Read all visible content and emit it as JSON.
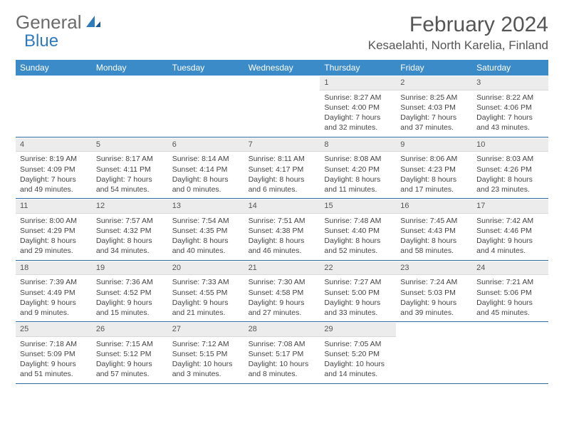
{
  "logo": {
    "text1": "General",
    "text2": "Blue"
  },
  "title": "February 2024",
  "location": "Kesaelahti, North Karelia, Finland",
  "colors": {
    "header_bg": "#3b8bc9",
    "header_text": "#ffffff",
    "daynum_bg": "#ececec",
    "week_border": "#2f6aa0",
    "logo_gray": "#6b6b6b",
    "logo_blue": "#2f7abf",
    "body_text": "#444444"
  },
  "weekdays": [
    "Sunday",
    "Monday",
    "Tuesday",
    "Wednesday",
    "Thursday",
    "Friday",
    "Saturday"
  ],
  "weeks": [
    [
      null,
      null,
      null,
      null,
      {
        "n": "1",
        "sr": "8:27 AM",
        "ss": "4:00 PM",
        "dl": "7 hours and 32 minutes."
      },
      {
        "n": "2",
        "sr": "8:25 AM",
        "ss": "4:03 PM",
        "dl": "7 hours and 37 minutes."
      },
      {
        "n": "3",
        "sr": "8:22 AM",
        "ss": "4:06 PM",
        "dl": "7 hours and 43 minutes."
      }
    ],
    [
      {
        "n": "4",
        "sr": "8:19 AM",
        "ss": "4:09 PM",
        "dl": "7 hours and 49 minutes."
      },
      {
        "n": "5",
        "sr": "8:17 AM",
        "ss": "4:11 PM",
        "dl": "7 hours and 54 minutes."
      },
      {
        "n": "6",
        "sr": "8:14 AM",
        "ss": "4:14 PM",
        "dl": "8 hours and 0 minutes."
      },
      {
        "n": "7",
        "sr": "8:11 AM",
        "ss": "4:17 PM",
        "dl": "8 hours and 6 minutes."
      },
      {
        "n": "8",
        "sr": "8:08 AM",
        "ss": "4:20 PM",
        "dl": "8 hours and 11 minutes."
      },
      {
        "n": "9",
        "sr": "8:06 AM",
        "ss": "4:23 PM",
        "dl": "8 hours and 17 minutes."
      },
      {
        "n": "10",
        "sr": "8:03 AM",
        "ss": "4:26 PM",
        "dl": "8 hours and 23 minutes."
      }
    ],
    [
      {
        "n": "11",
        "sr": "8:00 AM",
        "ss": "4:29 PM",
        "dl": "8 hours and 29 minutes."
      },
      {
        "n": "12",
        "sr": "7:57 AM",
        "ss": "4:32 PM",
        "dl": "8 hours and 34 minutes."
      },
      {
        "n": "13",
        "sr": "7:54 AM",
        "ss": "4:35 PM",
        "dl": "8 hours and 40 minutes."
      },
      {
        "n": "14",
        "sr": "7:51 AM",
        "ss": "4:38 PM",
        "dl": "8 hours and 46 minutes."
      },
      {
        "n": "15",
        "sr": "7:48 AM",
        "ss": "4:40 PM",
        "dl": "8 hours and 52 minutes."
      },
      {
        "n": "16",
        "sr": "7:45 AM",
        "ss": "4:43 PM",
        "dl": "8 hours and 58 minutes."
      },
      {
        "n": "17",
        "sr": "7:42 AM",
        "ss": "4:46 PM",
        "dl": "9 hours and 4 minutes."
      }
    ],
    [
      {
        "n": "18",
        "sr": "7:39 AM",
        "ss": "4:49 PM",
        "dl": "9 hours and 9 minutes."
      },
      {
        "n": "19",
        "sr": "7:36 AM",
        "ss": "4:52 PM",
        "dl": "9 hours and 15 minutes."
      },
      {
        "n": "20",
        "sr": "7:33 AM",
        "ss": "4:55 PM",
        "dl": "9 hours and 21 minutes."
      },
      {
        "n": "21",
        "sr": "7:30 AM",
        "ss": "4:58 PM",
        "dl": "9 hours and 27 minutes."
      },
      {
        "n": "22",
        "sr": "7:27 AM",
        "ss": "5:00 PM",
        "dl": "9 hours and 33 minutes."
      },
      {
        "n": "23",
        "sr": "7:24 AM",
        "ss": "5:03 PM",
        "dl": "9 hours and 39 minutes."
      },
      {
        "n": "24",
        "sr": "7:21 AM",
        "ss": "5:06 PM",
        "dl": "9 hours and 45 minutes."
      }
    ],
    [
      {
        "n": "25",
        "sr": "7:18 AM",
        "ss": "5:09 PM",
        "dl": "9 hours and 51 minutes."
      },
      {
        "n": "26",
        "sr": "7:15 AM",
        "ss": "5:12 PM",
        "dl": "9 hours and 57 minutes."
      },
      {
        "n": "27",
        "sr": "7:12 AM",
        "ss": "5:15 PM",
        "dl": "10 hours and 3 minutes."
      },
      {
        "n": "28",
        "sr": "7:08 AM",
        "ss": "5:17 PM",
        "dl": "10 hours and 8 minutes."
      },
      {
        "n": "29",
        "sr": "7:05 AM",
        "ss": "5:20 PM",
        "dl": "10 hours and 14 minutes."
      },
      null,
      null
    ]
  ],
  "labels": {
    "sunrise": "Sunrise:",
    "sunset": "Sunset:",
    "daylight": "Daylight:"
  }
}
